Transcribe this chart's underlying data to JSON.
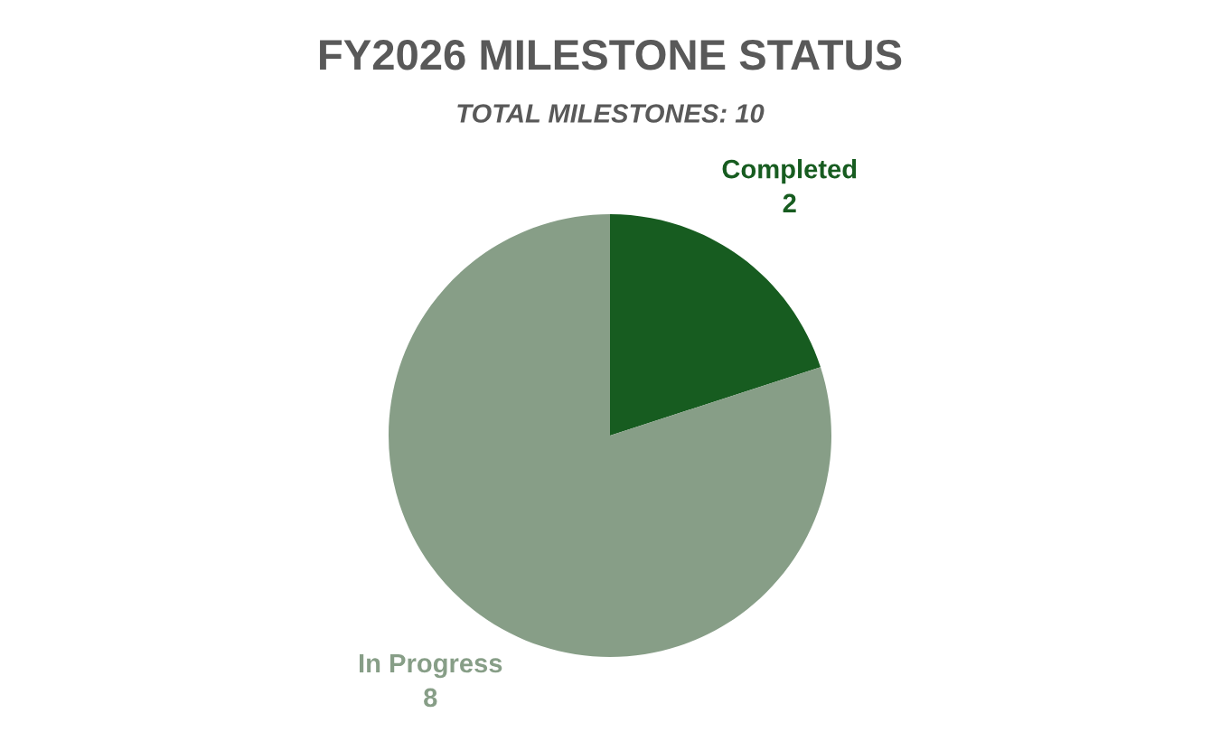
{
  "chart_data": {
    "type": "pie",
    "title": "FY2026 MILESTONE STATUS",
    "subtitle": "TOTAL MILESTONES: 10",
    "categories": [
      "Completed",
      "In Progress"
    ],
    "values": [
      2,
      8
    ],
    "colors": [
      "#175c20",
      "#879e87"
    ],
    "data_labels": true,
    "legend": false
  }
}
